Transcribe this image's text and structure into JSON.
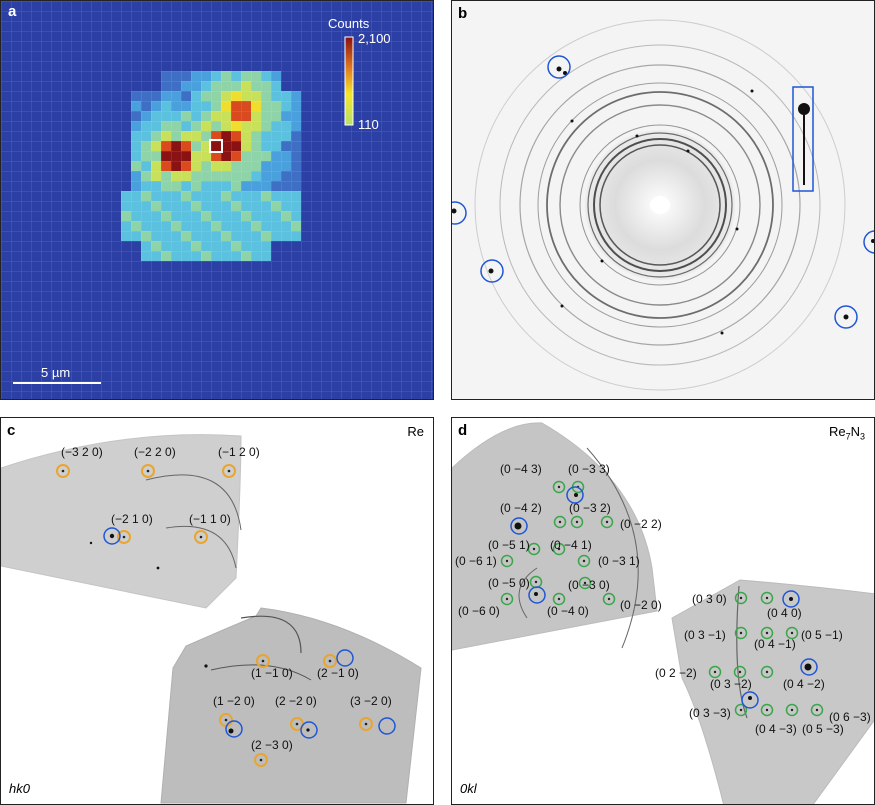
{
  "panels": {
    "a": {
      "label": "a",
      "colorbar": {
        "title": "Counts",
        "max": "2,100",
        "min": "110"
      },
      "scale_bar": "5 µm"
    },
    "b": {
      "label": "b"
    },
    "c": {
      "label": "c",
      "phase": "Re",
      "zone": "hk0",
      "reflections": [
        "(−3 2 0)",
        "(−2 2 0)",
        "(−1 2 0)",
        "(−2 1 0)",
        "(−1 1 0)",
        "(1 −1 0)",
        "(2 −1 0)",
        "(1 −2 0)",
        "(2 −2 0)",
        "(3 −2 0)",
        "(2 −3 0)"
      ]
    },
    "d": {
      "label": "d",
      "phase_base": "Re",
      "phase_sub1": "7",
      "phase_mid": "N",
      "phase_sub2": "3",
      "zone": "0kl",
      "reflections": [
        "(0 −4 3)",
        "(0 −3 3)",
        "(0 −4 2)",
        "(0 −3 2)",
        "(0 −2 2)",
        "(0 −5 1)",
        "(0 −4 1)",
        "(0 −6 1)",
        "(0 −3 1)",
        "(0 −5 0)",
        "(0 −3 0)",
        "(0 −6 0)",
        "(0 −4 0)",
        "(0 −2 0)",
        "(0 3 0)",
        "(0 4 0)",
        "(0 3 −1)",
        "(0 5 −1)",
        "(0 4 −1)",
        "(0 2 −2)",
        "(0 3 −2)",
        "(0 4 −2)",
        "(0 6 −3)",
        "(0 3 −3)",
        "(0 4 −3)",
        "(0 5 −3)"
      ]
    }
  },
  "colors": {
    "map_background": "#2b3fa5",
    "re_marker": "#e8a530",
    "re7n3_marker": "#3aa54a",
    "highlight_marker": "#1f56d6",
    "frame": "#222222"
  }
}
